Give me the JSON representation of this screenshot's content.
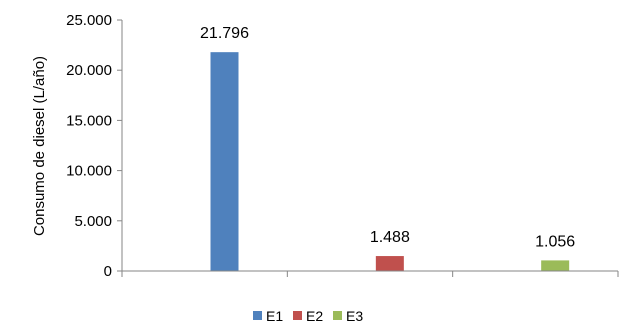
{
  "chart_data": {
    "type": "bar",
    "ylabel": "Consumo de diesel (L/año)",
    "ylim": [
      0,
      25000
    ],
    "y_ticks": [
      0,
      5000,
      10000,
      15000,
      20000,
      25000
    ],
    "y_tick_labels": [
      "0",
      "5.000",
      "10.000",
      "15.000",
      "20.000",
      "25.000"
    ],
    "categories": [
      "",
      "",
      ""
    ],
    "series": [
      {
        "name": "E1",
        "color": "#4F81BD",
        "values": [
          21796,
          null,
          null
        ],
        "label": "21.796"
      },
      {
        "name": "E2",
        "color": "#C0504D",
        "values": [
          null,
          1488,
          null
        ],
        "label": "1.488"
      },
      {
        "name": "E3",
        "color": "#9BBB59",
        "values": [
          null,
          null,
          1056
        ],
        "label": "1.056"
      }
    ],
    "grid": false,
    "legend_position": "bottom"
  }
}
